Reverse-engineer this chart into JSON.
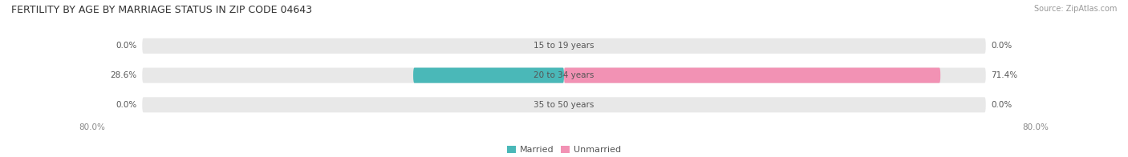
{
  "title": "FERTILITY BY AGE BY MARRIAGE STATUS IN ZIP CODE 04643",
  "source": "Source: ZipAtlas.com",
  "categories": [
    "15 to 19 years",
    "20 to 34 years",
    "35 to 50 years"
  ],
  "married_values": [
    0.0,
    28.6,
    0.0
  ],
  "unmarried_values": [
    0.0,
    71.4,
    0.0
  ],
  "max_value": 80.0,
  "married_color": "#4ab8b8",
  "unmarried_color": "#f292b4",
  "bar_bg_color": "#e8e8e8",
  "bg_color": "#ffffff",
  "title_color": "#333333",
  "source_color": "#999999",
  "label_color": "#555555",
  "axis_label_color": "#888888",
  "title_fontsize": 9.0,
  "source_fontsize": 7.0,
  "bar_label_fontsize": 7.5,
  "category_fontsize": 7.5,
  "axis_label_fontsize": 7.5,
  "legend_fontsize": 8.0,
  "bar_height": 0.52,
  "figsize": [
    14.06,
    1.96
  ],
  "dpi": 100
}
